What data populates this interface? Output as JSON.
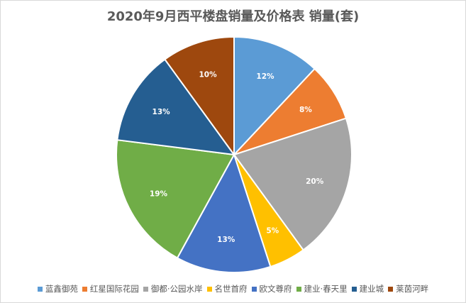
{
  "chart_data": {
    "type": "pie",
    "title": "2020年9月西平楼盘销量及价格表 销量(套)",
    "categories": [
      "蓝鑫御苑",
      "红星国际花园",
      "御都·公园水岸",
      "名世首府",
      "欧文尊府",
      "建业·春天里",
      "建业城",
      "莱茵河畔"
    ],
    "values": [
      12,
      8,
      20,
      5,
      13,
      19,
      13,
      10
    ],
    "labels": [
      "12%",
      "8%",
      "20%",
      "5%",
      "13%",
      "19%",
      "13%",
      "10%"
    ],
    "colors": [
      "#5B9BD5",
      "#ED7D31",
      "#A5A5A5",
      "#FFC000",
      "#4472C4",
      "#70AD47",
      "#255E91",
      "#9E480E"
    ],
    "legend_position": "bottom"
  }
}
